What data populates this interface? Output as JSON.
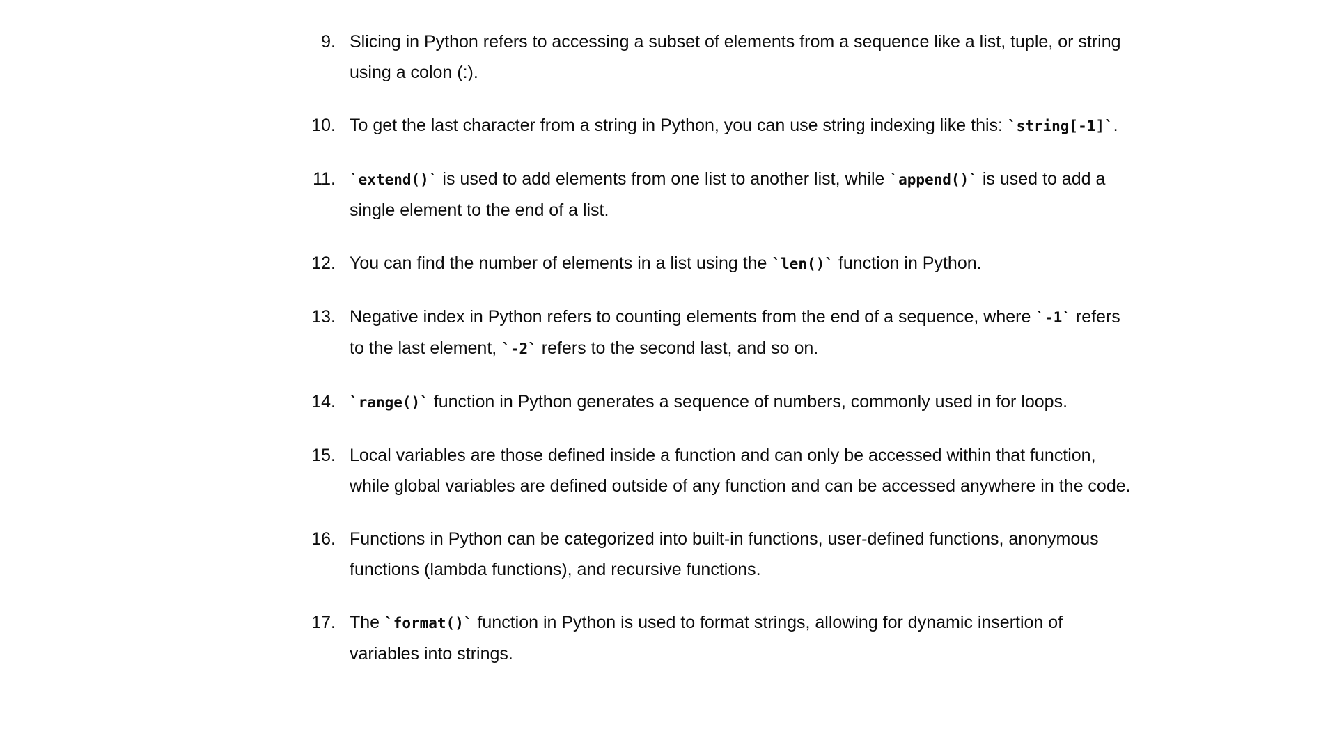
{
  "answers": [
    {
      "number": "9.",
      "text": "Slicing in Python refers to accessing a subset of elements from a sequence like a list, tuple, or string using a colon (:)."
    },
    {
      "number": "10.",
      "before": "To get the last character from a string in Python, you can use string indexing like this: ",
      "code": "string[-1]",
      "after": "."
    },
    {
      "number": "11.",
      "code1": "extend()",
      "middle": " is used to add elements from one list to another list, while ",
      "code2": "append()",
      "after": " is used to add a single element to the end of a list."
    },
    {
      "number": "12.",
      "before": "You can find the number of elements in a list using the ",
      "code": "len()",
      "after": " function in Python."
    },
    {
      "number": "13.",
      "before": "Negative index in Python refers to counting elements from the end of a sequence, where ",
      "code1": "-1",
      "middle": " refers to the last element, ",
      "code2": "-2",
      "after": " refers to the second last, and so on."
    },
    {
      "number": "14.",
      "code": "range()",
      "after": " function in Python generates a sequence of numbers, commonly used in for loops."
    },
    {
      "number": "15.",
      "text": "Local variables are those defined inside a function and can only be accessed within that function, while global variables are defined outside of any function and can be accessed anywhere in the code."
    },
    {
      "number": "16.",
      "text": "Functions in Python can be categorized into built-in functions, user-defined functions, anonymous functions (lambda functions), and recursive functions."
    },
    {
      "number": "17.",
      "before": "The ",
      "code": "format()",
      "after": " function in Python is used to format strings, allowing for dynamic insertion of variables into strings."
    }
  ]
}
